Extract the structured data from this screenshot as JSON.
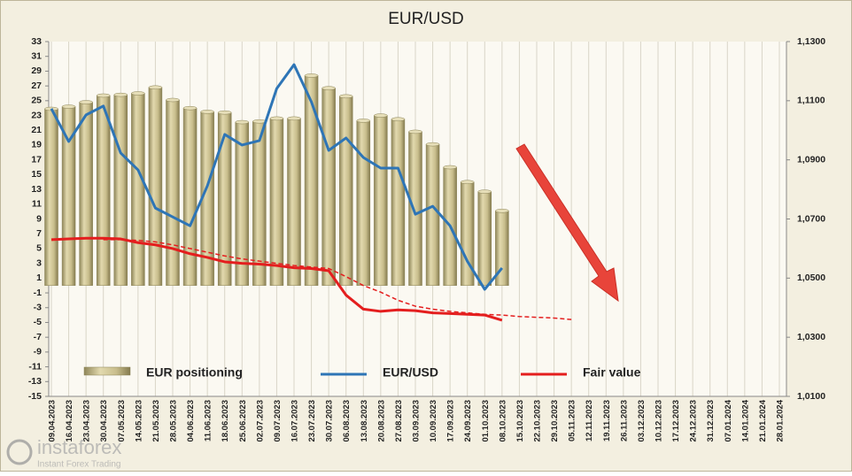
{
  "chart_data": {
    "type": "combo",
    "title": "EUR/USD",
    "categories": [
      "09.04.2023",
      "16.04.2023",
      "23.04.2023",
      "30.04.2023",
      "07.05.2023",
      "14.05.2023",
      "21.05.2023",
      "28.05.2023",
      "04.06.2023",
      "11.06.2023",
      "18.06.2023",
      "25.06.2023",
      "02.07.2023",
      "09.07.2023",
      "16.07.2023",
      "23.07.2023",
      "30.07.2023",
      "06.08.2023",
      "13.08.2023",
      "20.08.2023",
      "27.08.2023",
      "03.09.2023",
      "10.09.2023",
      "17.09.2023",
      "24.09.2023",
      "01.10.2023",
      "08.10.2023",
      "15.10.2023",
      "22.10.2023",
      "29.10.2023",
      "05.11.2023",
      "12.11.2023",
      "19.11.2023",
      "26.11.2023",
      "03.12.2023",
      "10.12.2023",
      "17.12.2023",
      "24.12.2023",
      "31.12.2023",
      "07.01.2024",
      "14.01.2024",
      "21.01.2024",
      "28.01.2024"
    ],
    "series": [
      {
        "name": "EUR positioning",
        "kind": "bar",
        "color": "#c8bd8c",
        "values": [
          23.9,
          24.2,
          24.8,
          25.7,
          25.8,
          26.0,
          26.8,
          25.1,
          24.0,
          23.5,
          23.4,
          22.1,
          22.2,
          22.6,
          22.6,
          28.4,
          26.7,
          25.6,
          22.3,
          23.0,
          22.5,
          20.8,
          19.1,
          16.0,
          14.0,
          12.7,
          10.1,
          null,
          null,
          null,
          null,
          null,
          null,
          null,
          null,
          null,
          null,
          null,
          null,
          null,
          null,
          null,
          null
        ]
      },
      {
        "name": "EUR/USD",
        "kind": "line",
        "axis": "y2",
        "color": "#2e75b6",
        "values": [
          1.1073,
          1.0962,
          1.1052,
          1.1082,
          1.0923,
          1.0866,
          1.0737,
          1.0707,
          1.0677,
          1.0812,
          1.0986,
          1.095,
          1.0965,
          1.1141,
          1.1222,
          1.1096,
          1.0932,
          1.0974,
          1.0908,
          1.0872,
          1.0872,
          1.0716,
          1.0743,
          1.0677,
          1.0557,
          1.0462,
          1.0534,
          null,
          null,
          null,
          null,
          null,
          null,
          null,
          null,
          null,
          null,
          null,
          null,
          null,
          null,
          null,
          null
        ]
      },
      {
        "name": "Fair value",
        "kind": "line",
        "color": "#e41e1e",
        "values": [
          6.2,
          6.3,
          6.4,
          6.4,
          6.3,
          5.8,
          5.5,
          5.0,
          4.3,
          3.8,
          3.2,
          3.0,
          2.9,
          2.7,
          2.4,
          2.3,
          2.0,
          -1.3,
          -3.2,
          -3.5,
          -3.3,
          -3.4,
          -3.7,
          -3.8,
          -3.9,
          -4.0,
          -4.7,
          null,
          null,
          null,
          null,
          null,
          null,
          null,
          null,
          null,
          null,
          null,
          null,
          null,
          null,
          null,
          null
        ]
      },
      {
        "kind": "line",
        "dashed": true,
        "color": "#e41e1e",
        "values": [
          null,
          null,
          null,
          6.2,
          6.2,
          6.1,
          5.9,
          5.5,
          5.0,
          4.5,
          4.0,
          3.6,
          3.3,
          3.0,
          2.7,
          2.5,
          2.3,
          1.2,
          0.0,
          -0.9,
          -2.0,
          -2.8,
          -3.2,
          -3.5,
          -3.7,
          -3.9,
          -4.0,
          -4.2,
          -4.3,
          -4.4,
          -4.6,
          null,
          null,
          null,
          null,
          null,
          null,
          null,
          null,
          null,
          null,
          null,
          null
        ]
      }
    ],
    "ylim": [
      -15,
      33
    ],
    "yticks": [
      -15,
      -13,
      -11,
      -9,
      -7,
      -5,
      -3,
      -1,
      1,
      3,
      5,
      7,
      9,
      11,
      13,
      15,
      17,
      19,
      21,
      23,
      25,
      27,
      29,
      31,
      33
    ],
    "y2lim": [
      1.01,
      1.13
    ],
    "y2ticks": [
      {
        "value": 1.01,
        "label": "1,0100"
      },
      {
        "value": 1.03,
        "label": "1,0300"
      },
      {
        "value": 1.05,
        "label": "1,0500"
      },
      {
        "value": 1.07,
        "label": "1,0700"
      },
      {
        "value": 1.09,
        "label": "1,0900"
      },
      {
        "value": 1.11,
        "label": "1,1100"
      },
      {
        "value": 1.13,
        "label": "1,1300"
      }
    ],
    "grid": "x"
  },
  "watermark": {
    "brand": "instaforex",
    "tagline": "Instant Forex Trading"
  }
}
